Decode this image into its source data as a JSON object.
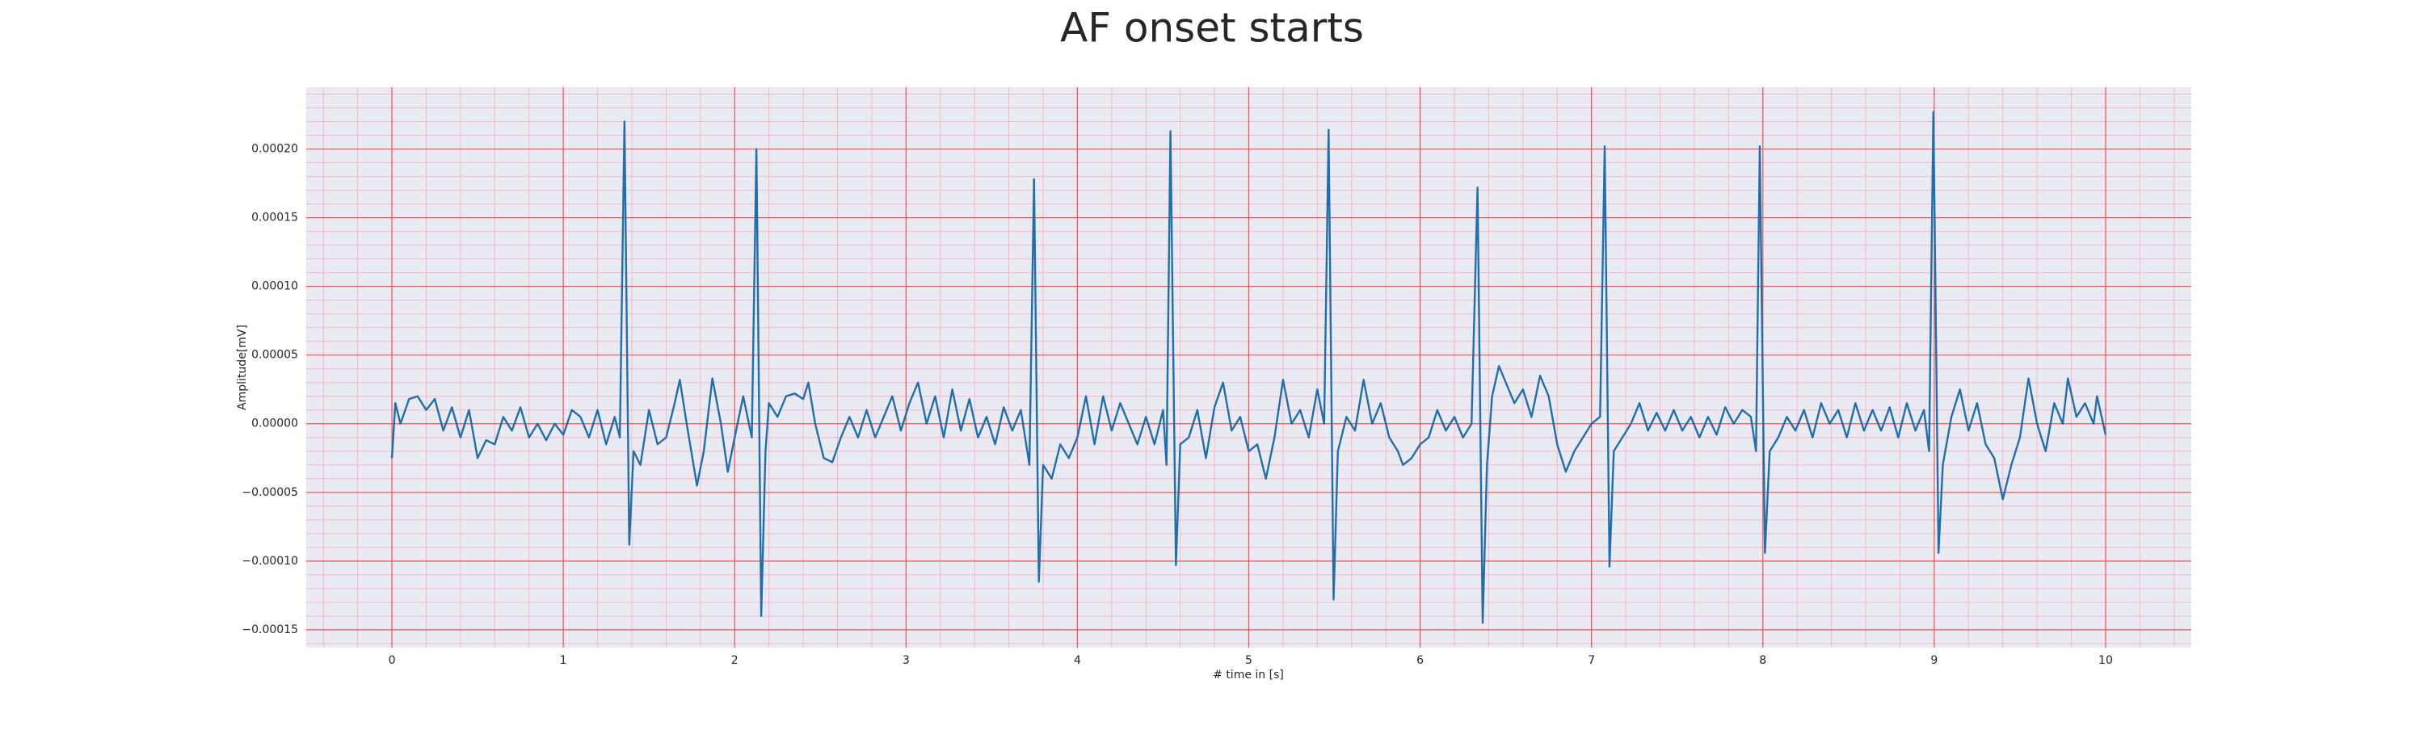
{
  "chart_data": {
    "type": "line",
    "title": "AF onset starts",
    "xlabel": "# time in [s]",
    "ylabel": "Amplitude[mV]",
    "color": "#1f6fad",
    "grid": true,
    "grid_color": "#f05050",
    "minor_grid": true,
    "minor_grid_color": "#f4b8c8",
    "minor_divisions": 5,
    "background": "#eaeaf2",
    "xlim": [
      -0.5,
      10.5
    ],
    "xticks": [
      0,
      1,
      2,
      3,
      4,
      5,
      6,
      7,
      8,
      9,
      10
    ],
    "ylim": [
      -0.000163,
      0.000245
    ],
    "yticks": [
      {
        "value": -0.00015,
        "label": "−0.00015"
      },
      {
        "value": -0.0001,
        "label": "−0.00010"
      },
      {
        "value": -5e-05,
        "label": "−0.00005"
      },
      {
        "value": 0,
        "label": "0.00000"
      },
      {
        "value": 5e-05,
        "label": "0.00005"
      },
      {
        "value": 0.0001,
        "label": "0.00010"
      },
      {
        "value": 0.00015,
        "label": "0.00015"
      },
      {
        "value": 0.0002,
        "label": "0.00020"
      }
    ],
    "x": [
      0,
      0.02,
      0.05,
      0.1,
      0.15,
      0.2,
      0.25,
      0.3,
      0.35,
      0.4,
      0.45,
      0.5,
      0.55,
      0.6,
      0.65,
      0.7,
      0.75,
      0.8,
      0.85,
      0.9,
      0.95,
      1.0,
      1.05,
      1.1,
      1.15,
      1.2,
      1.25,
      1.3,
      1.33,
      1.357,
      1.385,
      1.41,
      1.45,
      1.5,
      1.55,
      1.6,
      1.65,
      1.68,
      1.72,
      1.78,
      1.82,
      1.87,
      1.92,
      1.96,
      2.0,
      2.05,
      2.1,
      2.127,
      2.155,
      2.18,
      2.2,
      2.25,
      2.3,
      2.35,
      2.4,
      2.43,
      2.47,
      2.52,
      2.57,
      2.62,
      2.67,
      2.72,
      2.77,
      2.82,
      2.87,
      2.92,
      2.97,
      3.02,
      3.07,
      3.12,
      3.17,
      3.22,
      3.27,
      3.32,
      3.37,
      3.42,
      3.47,
      3.52,
      3.57,
      3.62,
      3.67,
      3.72,
      3.747,
      3.775,
      3.8,
      3.85,
      3.9,
      3.95,
      4.0,
      4.05,
      4.1,
      4.15,
      4.2,
      4.25,
      4.3,
      4.35,
      4.4,
      4.45,
      4.5,
      4.52,
      4.543,
      4.575,
      4.6,
      4.65,
      4.7,
      4.75,
      4.8,
      4.85,
      4.9,
      4.95,
      5.0,
      5.05,
      5.1,
      5.15,
      5.2,
      5.25,
      5.3,
      5.35,
      5.4,
      5.44,
      5.466,
      5.495,
      5.52,
      5.57,
      5.62,
      5.67,
      5.72,
      5.77,
      5.82,
      5.87,
      5.9,
      5.95,
      6.0,
      6.05,
      6.1,
      6.15,
      6.2,
      6.25,
      6.3,
      6.335,
      6.365,
      6.39,
      6.42,
      6.46,
      6.5,
      6.55,
      6.6,
      6.65,
      6.7,
      6.75,
      6.8,
      6.85,
      6.9,
      6.95,
      7.0,
      7.05,
      7.077,
      7.105,
      7.13,
      7.18,
      7.23,
      7.28,
      7.33,
      7.38,
      7.43,
      7.48,
      7.53,
      7.58,
      7.63,
      7.68,
      7.73,
      7.78,
      7.83,
      7.88,
      7.93,
      7.96,
      7.982,
      8.012,
      8.04,
      8.09,
      8.14,
      8.19,
      8.24,
      8.29,
      8.34,
      8.39,
      8.44,
      8.49,
      8.54,
      8.59,
      8.64,
      8.69,
      8.74,
      8.79,
      8.84,
      8.89,
      8.94,
      8.97,
      8.995,
      9.025,
      9.05,
      9.1,
      9.15,
      9.2,
      9.25,
      9.3,
      9.35,
      9.4,
      9.45,
      9.5,
      9.55,
      9.6,
      9.65,
      9.7,
      9.75,
      9.78,
      9.83,
      9.88,
      9.93,
      9.95,
      10.0
    ],
    "values": [
      -2.5e-05,
      1.5e-05,
      0,
      1.8e-05,
      2e-05,
      1e-05,
      1.8e-05,
      -5e-06,
      1.2e-05,
      -1e-05,
      1e-05,
      -2.5e-05,
      -1.2e-05,
      -1.5e-05,
      5e-06,
      -5e-06,
      1.2e-05,
      -1e-05,
      0,
      -1.2e-05,
      0,
      -8e-06,
      1e-05,
      5e-06,
      -1e-05,
      1e-05,
      -1.5e-05,
      5e-06,
      -1e-05,
      0.00022,
      -8.8e-05,
      -2e-05,
      -3e-05,
      1e-05,
      -1.5e-05,
      -1e-05,
      1.5e-05,
      3.2e-05,
      0,
      -4.5e-05,
      -2e-05,
      3.3e-05,
      0,
      -3.5e-05,
      -1e-05,
      2e-05,
      -1e-05,
      0.0002,
      -0.00014,
      -2e-05,
      1.5e-05,
      5e-06,
      2e-05,
      2.2e-05,
      1.8e-05,
      3e-05,
      0,
      -2.5e-05,
      -2.8e-05,
      -1e-05,
      5e-06,
      -1e-05,
      1e-05,
      -1e-05,
      5e-06,
      2e-05,
      -5e-06,
      1.5e-05,
      3e-05,
      0,
      2e-05,
      -1e-05,
      2.5e-05,
      -5e-06,
      1.8e-05,
      -1e-05,
      5e-06,
      -1.5e-05,
      1.2e-05,
      -5e-06,
      1e-05,
      -3e-05,
      0.000178,
      -0.000115,
      -3e-05,
      -4e-05,
      -1.5e-05,
      -2.5e-05,
      -1e-05,
      2e-05,
      -1.5e-05,
      2e-05,
      -5e-06,
      1.5e-05,
      0,
      -1.5e-05,
      5e-06,
      -1.5e-05,
      1e-05,
      -3e-05,
      0.000213,
      -0.000103,
      -1.5e-05,
      -1e-05,
      1e-05,
      -2.5e-05,
      1.2e-05,
      3e-05,
      -5e-06,
      5e-06,
      -2e-05,
      -1.5e-05,
      -4e-05,
      -1e-05,
      3.2e-05,
      0,
      1e-05,
      -1e-05,
      2.5e-05,
      0,
      0.000214,
      -0.000128,
      -2e-05,
      5e-06,
      -5e-06,
      3.2e-05,
      0,
      1.5e-05,
      -1e-05,
      -2e-05,
      -3e-05,
      -2.5e-05,
      -1.5e-05,
      -1e-05,
      1e-05,
      -5e-06,
      5e-06,
      -1e-05,
      0,
      0.000172,
      -0.000145,
      -3e-05,
      2e-05,
      4.2e-05,
      3e-05,
      1.5e-05,
      2.5e-05,
      5e-06,
      3.5e-05,
      2e-05,
      -1.5e-05,
      -3.5e-05,
      -2e-05,
      -1e-05,
      0,
      5e-06,
      0.000202,
      -0.000104,
      -2e-05,
      -1e-05,
      0,
      1.5e-05,
      -5e-06,
      8e-06,
      -5e-06,
      1e-05,
      -5e-06,
      5e-06,
      -1e-05,
      5e-06,
      -8e-06,
      1.2e-05,
      0,
      1e-05,
      5e-06,
      -2e-05,
      0.000202,
      -9.4e-05,
      -2e-05,
      -1e-05,
      5e-06,
      -5e-06,
      1e-05,
      -1e-05,
      1.5e-05,
      0,
      1e-05,
      -1e-05,
      1.5e-05,
      -5e-06,
      1e-05,
      -5e-06,
      1.2e-05,
      -1e-05,
      1.5e-05,
      -5e-06,
      1e-05,
      -2e-05,
      0.000227,
      -9.4e-05,
      -3e-05,
      5e-06,
      2.5e-05,
      -5e-06,
      1.5e-05,
      -1.5e-05,
      -2.5e-05,
      -5.5e-05,
      -3e-05,
      -1e-05,
      3.3e-05,
      0,
      -2e-05,
      1.5e-05,
      0,
      3.3e-05,
      5e-06,
      1.5e-05,
      0,
      2e-05,
      -8e-06
    ]
  }
}
